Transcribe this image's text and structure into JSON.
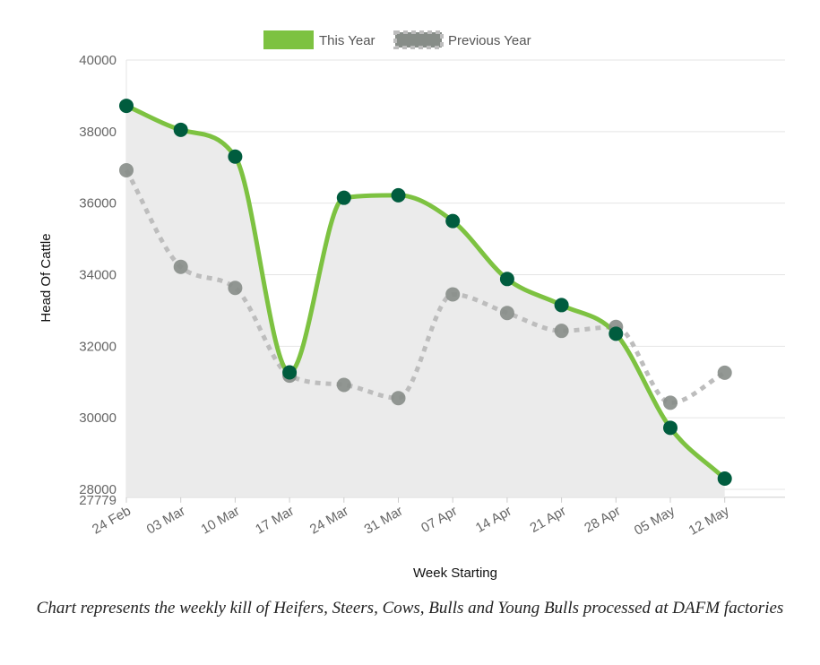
{
  "chart_data": {
    "type": "line",
    "xlabel": "Week Starting",
    "ylabel": "Head Of Cattle",
    "categories": [
      "24 Feb",
      "03 Mar",
      "10 Mar",
      "17 Mar",
      "24 Mar",
      "31 Mar",
      "07 Apr",
      "14 Apr",
      "21 Apr",
      "28 Apr",
      "05 May",
      "12 May"
    ],
    "ylim": [
      27779,
      40000
    ],
    "yticks": [
      40000,
      38000,
      36000,
      34000,
      32000,
      30000,
      28000,
      27779
    ],
    "grid": true,
    "legend_position": "top",
    "series": [
      {
        "name": "This Year",
        "values": [
          38720,
          38050,
          37300,
          31270,
          36150,
          36220,
          35500,
          33880,
          33150,
          32350,
          29720,
          28300
        ],
        "color": "#7dc241",
        "marker_color": "#005c3e",
        "fill": "#ebebeb",
        "style": "solid"
      },
      {
        "name": "Previous Year",
        "values": [
          36920,
          34220,
          33630,
          31180,
          30920,
          30550,
          33450,
          32930,
          32430,
          32540,
          30420,
          31260
        ],
        "color": "#bdbdbd",
        "marker_color": "#878d88",
        "style": "dotted"
      }
    ]
  },
  "caption": "Chart represents the weekly kill of Heifers, Steers, Cows, Bulls and Young Bulls processed at DAFM factories"
}
